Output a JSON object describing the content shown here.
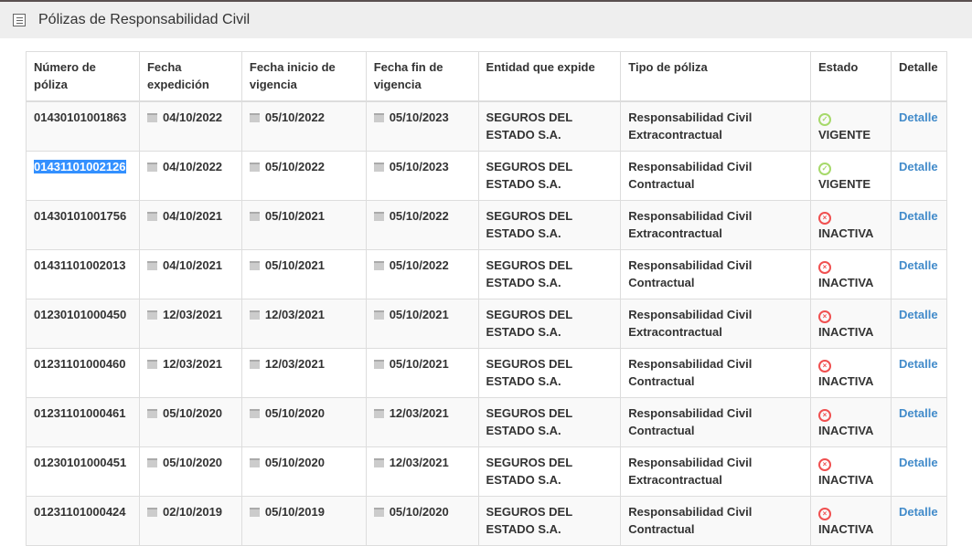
{
  "header": {
    "title": "Pólizas de Responsabilidad Civil",
    "icon": "list-icon"
  },
  "columns": [
    "Número de póliza",
    "Fecha expedición",
    "Fecha inicio de vigencia",
    "Fecha fin de vigencia",
    "Entidad que expide",
    "Tipo de póliza",
    "Estado",
    "Detalle"
  ],
  "rows": [
    {
      "numero": "01430101001863",
      "expedicion": "04/10/2022",
      "inicio": "05/10/2022",
      "fin": "05/10/2023",
      "entidad": "SEGUROS DEL ESTADO S.A.",
      "tipo": "Responsabilidad Civil Extracontractual",
      "estado": "VIGENTE",
      "detalle": "Detalle"
    },
    {
      "numero": "01431101002126",
      "expedicion": "04/10/2022",
      "inicio": "05/10/2022",
      "fin": "05/10/2023",
      "entidad": "SEGUROS DEL ESTADO S.A.",
      "tipo": "Responsabilidad Civil Contractual",
      "estado": "VIGENTE",
      "detalle": "Detalle"
    },
    {
      "numero": "01430101001756",
      "expedicion": "04/10/2021",
      "inicio": "05/10/2021",
      "fin": "05/10/2022",
      "entidad": "SEGUROS DEL ESTADO S.A.",
      "tipo": "Responsabilidad Civil Extracontractual",
      "estado": "INACTIVA",
      "detalle": "Detalle"
    },
    {
      "numero": "01431101002013",
      "expedicion": "04/10/2021",
      "inicio": "05/10/2021",
      "fin": "05/10/2022",
      "entidad": "SEGUROS DEL ESTADO S.A.",
      "tipo": "Responsabilidad Civil Contractual",
      "estado": "INACTIVA",
      "detalle": "Detalle"
    },
    {
      "numero": "01230101000450",
      "expedicion": "12/03/2021",
      "inicio": "12/03/2021",
      "fin": "05/10/2021",
      "entidad": "SEGUROS DEL ESTADO S.A.",
      "tipo": "Responsabilidad Civil Extracontractual",
      "estado": "INACTIVA",
      "detalle": "Detalle"
    },
    {
      "numero": "01231101000460",
      "expedicion": "12/03/2021",
      "inicio": "12/03/2021",
      "fin": "05/10/2021",
      "entidad": "SEGUROS DEL ESTADO S.A.",
      "tipo": "Responsabilidad Civil Contractual",
      "estado": "INACTIVA",
      "detalle": "Detalle"
    },
    {
      "numero": "01231101000461",
      "expedicion": "05/10/2020",
      "inicio": "05/10/2020",
      "fin": "12/03/2021",
      "entidad": "SEGUROS DEL ESTADO S.A.",
      "tipo": "Responsabilidad Civil Contractual",
      "estado": "INACTIVA",
      "detalle": "Detalle"
    },
    {
      "numero": "01230101000451",
      "expedicion": "05/10/2020",
      "inicio": "05/10/2020",
      "fin": "12/03/2021",
      "entidad": "SEGUROS DEL ESTADO S.A.",
      "tipo": "Responsabilidad Civil Extracontractual",
      "estado": "INACTIVA",
      "detalle": "Detalle"
    },
    {
      "numero": "01231101000424",
      "expedicion": "02/10/2019",
      "inicio": "05/10/2019",
      "fin": "05/10/2020",
      "entidad": "SEGUROS DEL ESTADO S.A.",
      "tipo": "Responsabilidad Civil Contractual",
      "estado": "INACTIVA",
      "detalle": "Detalle"
    }
  ],
  "selected_row": 1,
  "colors": {
    "vigente": "#a6d96a",
    "inactiva": "#f05050",
    "link": "#428bca",
    "selection": "#3390ff"
  }
}
